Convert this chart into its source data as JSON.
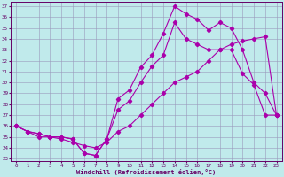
{
  "title": "",
  "xlabel": "Windchill (Refroidissement éolien,°C)",
  "ylabel": "",
  "xlim": [
    -0.5,
    23.5
  ],
  "ylim": [
    22.8,
    37.4
  ],
  "xticks": [
    0,
    1,
    2,
    3,
    4,
    5,
    6,
    7,
    8,
    9,
    10,
    11,
    12,
    13,
    14,
    15,
    16,
    17,
    18,
    19,
    20,
    21,
    22,
    23
  ],
  "yticks": [
    23,
    24,
    25,
    26,
    27,
    28,
    29,
    30,
    31,
    32,
    33,
    34,
    35,
    36,
    37
  ],
  "background_color": "#c0eaeb",
  "grid_color": "#9999bb",
  "line_color": "#aa00aa",
  "line1_x": [
    0,
    1,
    2,
    3,
    4,
    5,
    6,
    7,
    8,
    9,
    10,
    11,
    12,
    13,
    14,
    15,
    16,
    17,
    18,
    19,
    20,
    21,
    22,
    23
  ],
  "line1_y": [
    26.0,
    25.5,
    25.3,
    25.0,
    25.0,
    24.8,
    23.5,
    23.3,
    24.8,
    28.5,
    29.3,
    31.4,
    32.5,
    34.5,
    37.0,
    36.3,
    35.8,
    34.8,
    35.5,
    35.0,
    33.0,
    30.0,
    29.0,
    27.0
  ],
  "line2_x": [
    0,
    1,
    2,
    3,
    4,
    5,
    6,
    7,
    8,
    9,
    10,
    11,
    12,
    13,
    14,
    15,
    16,
    17,
    18,
    19,
    20,
    21,
    22,
    23
  ],
  "line2_y": [
    26.0,
    25.5,
    25.3,
    25.0,
    25.0,
    24.8,
    23.5,
    23.3,
    24.8,
    27.5,
    28.3,
    30.0,
    31.5,
    32.5,
    35.5,
    34.0,
    33.5,
    33.0,
    33.0,
    33.0,
    30.8,
    29.8,
    27.0,
    27.0
  ],
  "line3_x": [
    0,
    1,
    2,
    3,
    4,
    5,
    6,
    7,
    8,
    9,
    10,
    11,
    12,
    13,
    14,
    15,
    16,
    17,
    18,
    19,
    20,
    21,
    22,
    23
  ],
  "line3_y": [
    26.0,
    25.5,
    25.0,
    25.0,
    24.8,
    24.5,
    24.2,
    24.0,
    24.5,
    25.5,
    26.0,
    27.0,
    28.0,
    29.0,
    30.0,
    30.5,
    31.0,
    32.0,
    33.0,
    33.5,
    33.8,
    34.0,
    34.2,
    27.0
  ],
  "marker": "D",
  "markersize": 2.2,
  "linewidth": 0.8,
  "tick_fontsize": 4.2,
  "xlabel_fontsize": 5.0
}
